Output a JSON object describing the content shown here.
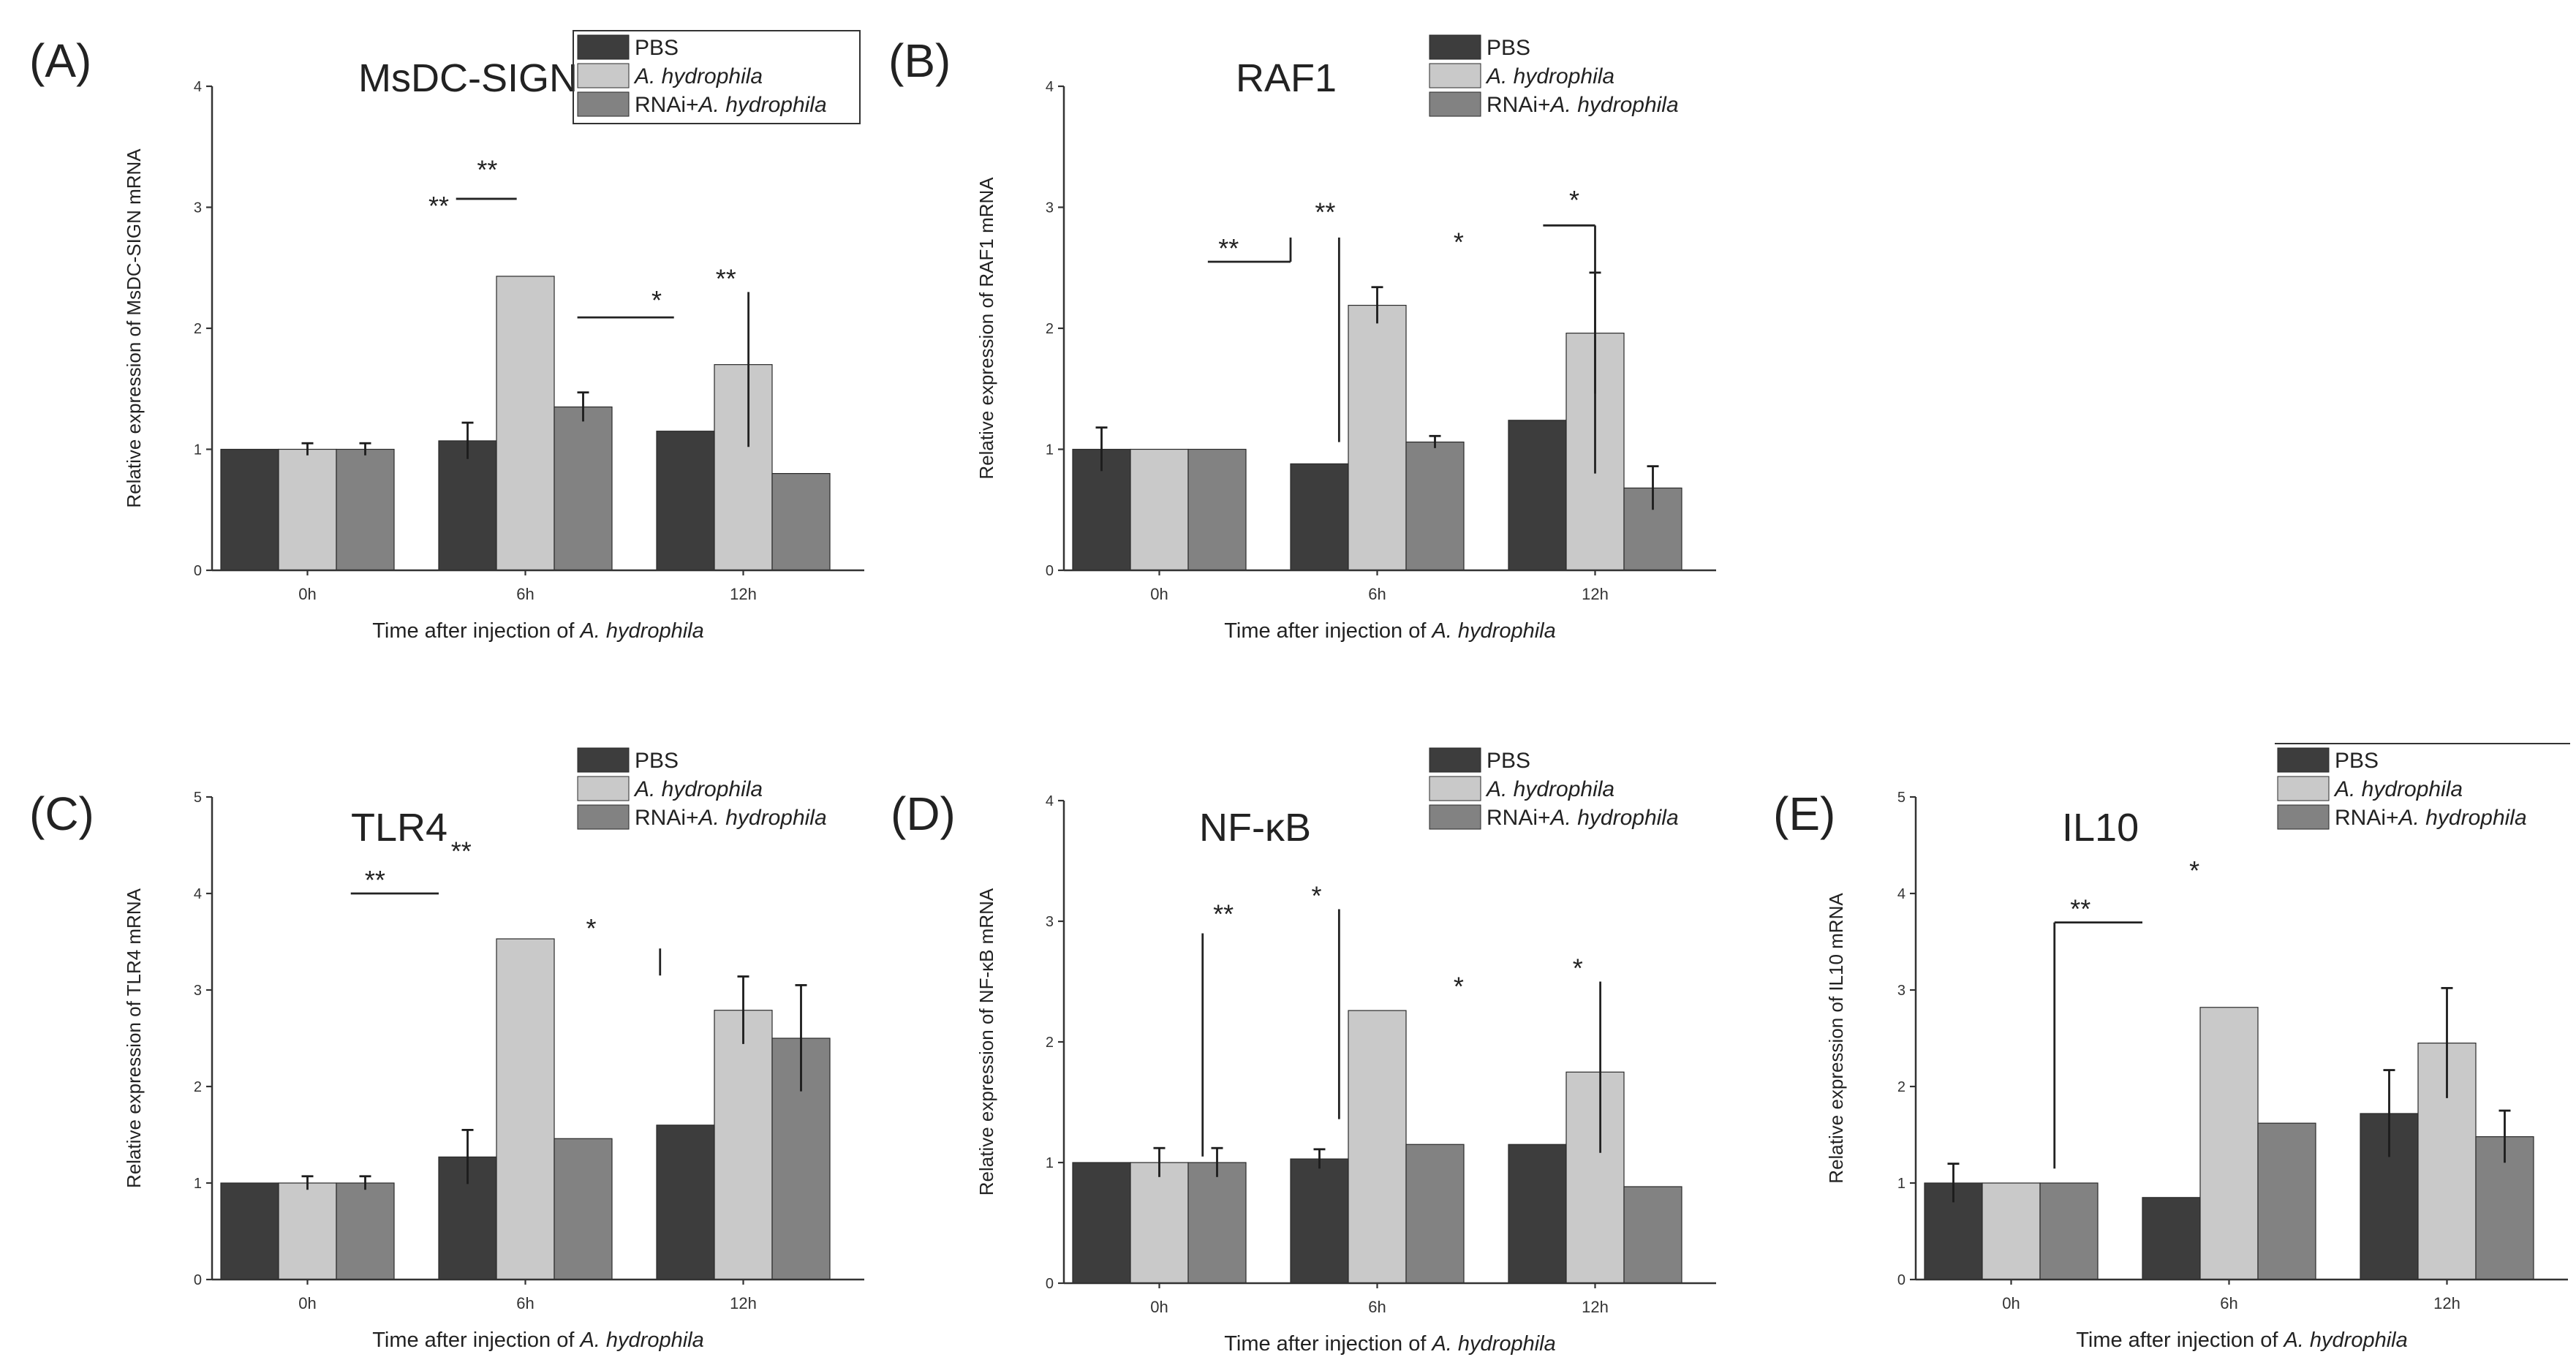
{
  "colors": {
    "PBS": "#3d3d3d",
    "A. hydrophila": "#c9c9c9",
    "RNAi+A. hydrophila": "#828282"
  },
  "legend": [
    {
      "key": "PBS",
      "parts": [
        {
          "text": "PBS",
          "italic": false
        }
      ]
    },
    {
      "key": "A. hydrophila",
      "parts": [
        {
          "text": "A. hydrophila",
          "italic": true
        }
      ]
    },
    {
      "key": "RNAi+A. hydrophila",
      "parts": [
        {
          "text": "RNAi+",
          "italic": false
        },
        {
          "text": "A. hydrophila",
          "italic": true
        }
      ]
    }
  ],
  "chart_data": [
    {
      "type": "bar",
      "panel_label": "(A)",
      "title": "MsDC-SIGN",
      "ylabel": "Relative expression of MsDC-SIGN mRNA",
      "xlabel_parts": [
        {
          "text": "Time after injection of ",
          "italic": false
        },
        {
          "text": "A. hydrophila",
          "italic": true
        }
      ],
      "categories": [
        "0h",
        "6h",
        "12h"
      ],
      "ylim": [
        0,
        4
      ],
      "yticks": [
        "0",
        "1",
        "2",
        "3",
        "4"
      ],
      "series": [
        {
          "name": "PBS",
          "values": [
            1.0,
            1.07,
            1.15
          ],
          "err": [
            0,
            0.15,
            0
          ]
        },
        {
          "name": "A. hydrophila",
          "values": [
            1.0,
            2.43,
            1.7
          ],
          "err": [
            0.05,
            0,
            0
          ]
        },
        {
          "name": "RNAi+A. hydrophila",
          "values": [
            1.0,
            1.35,
            0.8
          ],
          "err": [
            0.05,
            0.12,
            0
          ]
        }
      ],
      "significance": [
        {
          "label": "**",
          "x": 1.0,
          "y": 2.9,
          "lines": []
        },
        {
          "label": "**",
          "x": 1.28,
          "y": 3.2,
          "lines": [
            [
              [
                1.1,
                3.07
              ],
              [
                1.45,
                3.07
              ]
            ]
          ]
        },
        {
          "label": "*",
          "x": 2.0,
          "y": 2.12,
          "lines": [
            [
              [
                1.8,
                2.09
              ],
              [
                2.1,
                2.09
              ]
            ]
          ]
        },
        {
          "label": "**",
          "x": 2.4,
          "y": 2.3,
          "lines": [
            [
              [
                2.53,
                2.3
              ],
              [
                2.53,
                1.02
              ]
            ]
          ]
        }
      ]
    },
    {
      "type": "bar",
      "panel_label": "(B)",
      "title": "RAF1",
      "ylabel": "Relative expression of RAF1 mRNA",
      "xlabel_parts": [
        {
          "text": "Time after injection of ",
          "italic": false
        },
        {
          "text": "A. hydrophila",
          "italic": true
        }
      ],
      "categories": [
        "0h",
        "6h",
        "12h"
      ],
      "ylim": [
        0,
        4
      ],
      "yticks": [
        "0",
        "1",
        "2",
        "3",
        "4"
      ],
      "series": [
        {
          "name": "PBS",
          "values": [
            1.0,
            0.88,
            1.24
          ],
          "err": [
            0.18,
            0,
            0
          ]
        },
        {
          "name": "A. hydrophila",
          "values": [
            1.0,
            2.19,
            1.96
          ],
          "err": [
            0,
            0.15,
            0.5
          ]
        },
        {
          "name": "RNAi+A. hydrophila",
          "values": [
            1.0,
            1.06,
            0.68
          ],
          "err": [
            0,
            0.05,
            0.18
          ]
        }
      ],
      "significance": [
        {
          "label": "**",
          "x": 0.9,
          "y": 2.55,
          "lines": [
            [
              [
                0.78,
                2.55
              ],
              [
                1.0,
                2.55
              ]
            ],
            [
              [
                1.0,
                2.55
              ],
              [
                1.0,
                2.75
              ]
            ]
          ]
        },
        {
          "label": "**",
          "x": 1.2,
          "y": 2.85,
          "lines": [
            [
              [
                1.28,
                2.75
              ],
              [
                1.28,
                1.06
              ]
            ]
          ]
        },
        {
          "label": "*",
          "x": 1.97,
          "y": 2.6,
          "lines": []
        },
        {
          "label": "*",
          "x": 2.38,
          "y": 2.95,
          "lines": [
            [
              [
                2.2,
                2.85
              ],
              [
                2.5,
                2.85
              ]
            ],
            [
              [
                2.5,
                2.85
              ],
              [
                2.5,
                0.8
              ]
            ]
          ]
        }
      ]
    },
    {
      "type": "bar",
      "panel_label": "(C)",
      "title": "TLR4",
      "ylabel": "Relative expression of TLR4 mRNA",
      "xlabel_parts": [
        {
          "text": "Time after injection of ",
          "italic": false
        },
        {
          "text": "A. hydrophila",
          "italic": true
        }
      ],
      "categories": [
        "0h",
        "6h",
        "12h"
      ],
      "ylim": [
        0,
        5
      ],
      "yticks": [
        "0",
        "1",
        "2",
        "3",
        "4",
        "5"
      ],
      "series": [
        {
          "name": "PBS",
          "values": [
            1.0,
            1.27,
            1.6
          ],
          "err": [
            0,
            0.28,
            0
          ]
        },
        {
          "name": "A. hydrophila",
          "values": [
            1.0,
            3.53,
            2.79
          ],
          "err": [
            0.07,
            0,
            0.35
          ]
        },
        {
          "name": "RNAi+A. hydrophila",
          "values": [
            1.0,
            1.46,
            2.5
          ],
          "err": [
            0.07,
            0,
            0.55
          ]
        }
      ],
      "significance": [
        {
          "label": "**",
          "x": 0.89,
          "y": 4.0,
          "lines": [
            [
              [
                0.75,
                4.0
              ],
              [
                1.0,
                4.0
              ]
            ]
          ]
        },
        {
          "label": "**",
          "x": 1.13,
          "y": 4.3,
          "lines": []
        },
        {
          "label": "*",
          "x": 1.88,
          "y": 3.5,
          "lines": [
            [
              [
                2.02,
                3.43
              ],
              [
                2.02,
                3.15
              ]
            ]
          ]
        }
      ]
    },
    {
      "type": "bar",
      "panel_label": "(D)",
      "title": "NF-κB",
      "ylabel": "Relative expression of NF-κB mRNA",
      "xlabel_parts": [
        {
          "text": "Time after injection of ",
          "italic": false
        },
        {
          "text": "A. hydrophila",
          "italic": true
        }
      ],
      "categories": [
        "0h",
        "6h",
        "12h"
      ],
      "ylim": [
        0,
        4
      ],
      "yticks": [
        "0",
        "1",
        "2",
        "3",
        "4"
      ],
      "series": [
        {
          "name": "PBS",
          "values": [
            1.0,
            1.03,
            1.15
          ],
          "err": [
            0,
            0.08,
            0
          ]
        },
        {
          "name": "A. hydrophila",
          "values": [
            1.0,
            2.26,
            1.75
          ],
          "err": [
            0.12,
            0,
            0
          ]
        },
        {
          "name": "RNAi+A. hydrophila",
          "values": [
            1.0,
            1.15,
            0.8
          ],
          "err": [
            0.12,
            0,
            0
          ]
        }
      ],
      "significance": [
        {
          "label": "**",
          "x": 0.87,
          "y": 2.95,
          "lines": [
            [
              [
                0.75,
                2.9
              ],
              [
                0.75,
                1.05
              ]
            ]
          ]
        },
        {
          "label": "*",
          "x": 1.15,
          "y": 3.1,
          "lines": [
            [
              [
                1.28,
                3.1
              ],
              [
                1.28,
                1.36
              ]
            ]
          ]
        },
        {
          "label": "*",
          "x": 1.97,
          "y": 2.35,
          "lines": []
        },
        {
          "label": "*",
          "x": 2.4,
          "y": 2.5,
          "lines": [
            [
              [
                2.53,
                2.5
              ],
              [
                2.53,
                1.08
              ]
            ]
          ]
        }
      ]
    },
    {
      "type": "bar",
      "panel_label": "(E)",
      "title": "IL10",
      "ylabel": "Relative expression of IL10 mRNA",
      "xlabel_parts": [
        {
          "text": "Time after injection of ",
          "italic": false
        },
        {
          "text": "A. hydrophila",
          "italic": true
        }
      ],
      "categories": [
        "0h",
        "6h",
        "12h"
      ],
      "ylim": [
        0,
        5
      ],
      "yticks": [
        "0",
        "1",
        "2",
        "3",
        "4",
        "5"
      ],
      "series": [
        {
          "name": "PBS",
          "values": [
            1.0,
            0.85,
            1.72
          ],
          "err": [
            0.2,
            0,
            0.45
          ]
        },
        {
          "name": "A. hydrophila",
          "values": [
            1.0,
            2.82,
            2.45
          ],
          "err": [
            0,
            0,
            0.57
          ]
        },
        {
          "name": "RNAi+A. hydrophila",
          "values": [
            1.0,
            1.62,
            1.48
          ],
          "err": [
            0,
            0,
            0.27
          ]
        }
      ],
      "significance": [
        {
          "label": "**",
          "x": 0.9,
          "y": 3.7,
          "lines": [
            [
              [
                0.75,
                3.7
              ],
              [
                1.0,
                3.7
              ]
            ],
            [
              [
                0.75,
                3.7
              ],
              [
                0.75,
                1.15
              ]
            ]
          ]
        },
        {
          "label": "*",
          "x": 1.3,
          "y": 4.1,
          "lines": []
        }
      ]
    }
  ]
}
